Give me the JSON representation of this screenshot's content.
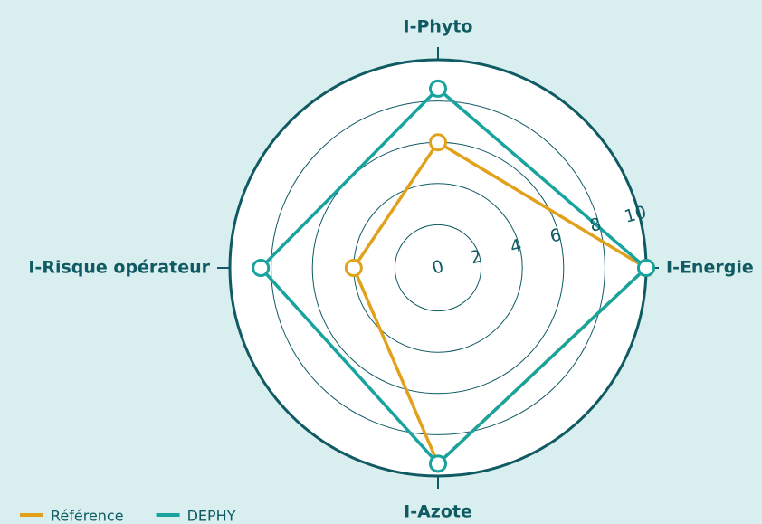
{
  "chart_data": {
    "type": "radar",
    "categories": [
      "I-Phyto",
      "I-Energie",
      "I-Azote",
      "I-Risque opérateur"
    ],
    "series": [
      {
        "name": "Référence",
        "color": "#e1a11b",
        "values": [
          6,
          10,
          9.4,
          4
        ]
      },
      {
        "name": "DEPHY",
        "color": "#18a39e",
        "values": [
          8.6,
          10,
          9.4,
          8.5
        ]
      }
    ],
    "ylim": [
      0,
      10
    ],
    "yticks": [
      0,
      2,
      4,
      6,
      8,
      10
    ],
    "grid": true
  }
}
